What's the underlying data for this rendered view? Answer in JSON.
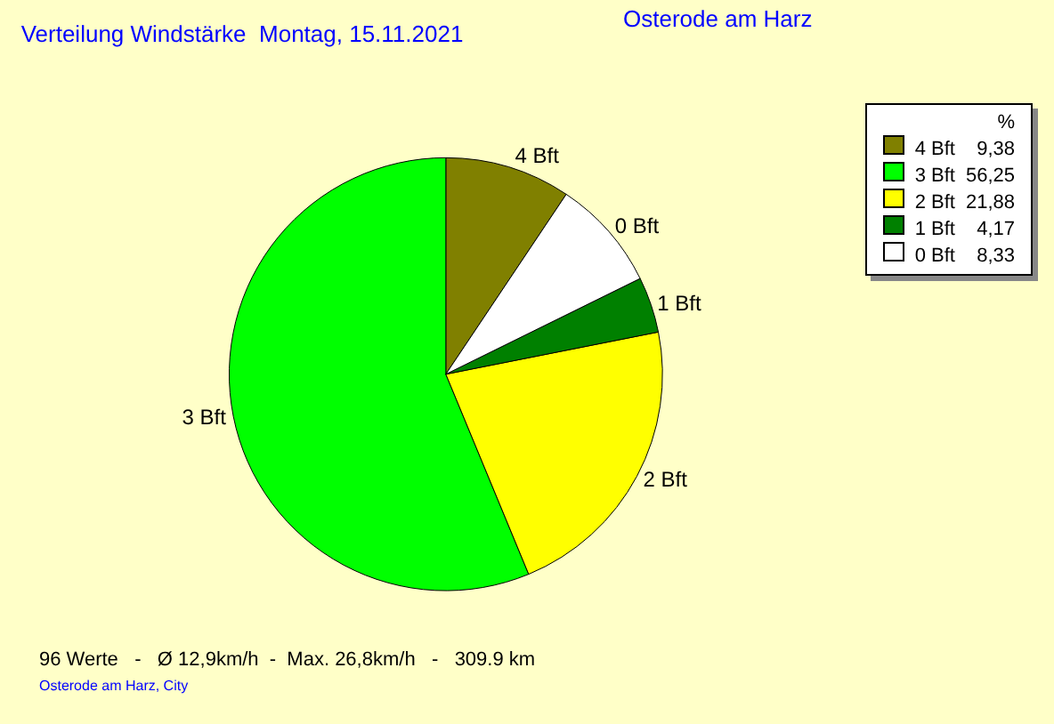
{
  "chart_data": {
    "type": "pie",
    "title": "Verteilung Windstärke  Montag, 15.11.2021",
    "subtitle": "Osterode am Harz",
    "categories": [
      "4 Bft",
      "3 Bft",
      "2 Bft",
      "1 Bft",
      "0 Bft"
    ],
    "values": [
      9.38,
      56.25,
      21.88,
      4.17,
      8.33
    ],
    "value_labels": [
      "9,38",
      "56,25",
      "21,88",
      "4,17",
      "8,33"
    ],
    "colors": [
      "#808000",
      "#00ff00",
      "#ffff00",
      "#008000",
      "#ffffff"
    ],
    "legend": "top right",
    "legend_title": "%",
    "annotations": [
      "96 Werte   -   Ø 12,9km/h  -  Max. 26,8km/h   -   309.9 km",
      "Osterode am Harz, City"
    ]
  }
}
